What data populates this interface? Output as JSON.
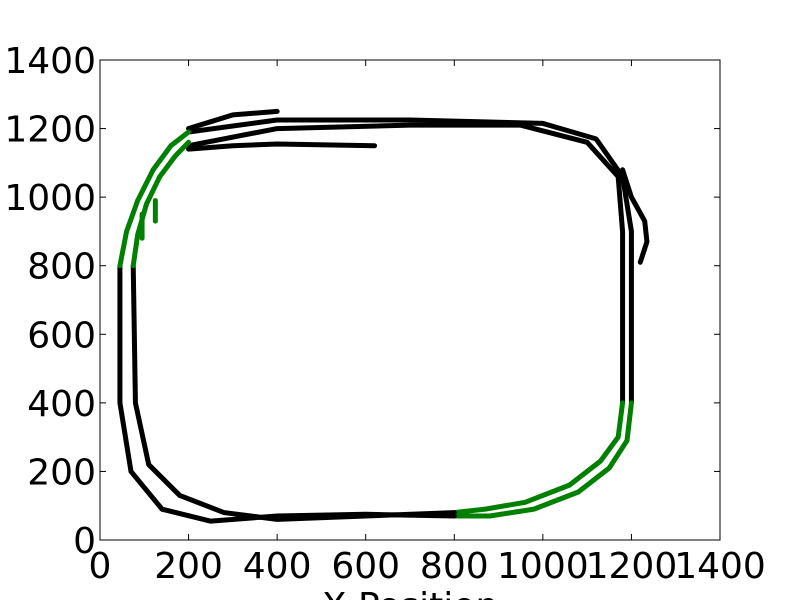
{
  "chart_data": {
    "type": "line",
    "xlabel": "X Position",
    "xlim": [
      0,
      1400
    ],
    "ylim": [
      0,
      1400
    ],
    "xticks": [
      0,
      200,
      400,
      600,
      800,
      1000,
      1200,
      1400
    ],
    "yticks": [
      0,
      200,
      400,
      600,
      800,
      1000,
      1200,
      1400
    ],
    "series": [
      {
        "color": "#000000",
        "x": [
          200,
          300,
          400
        ],
        "values": [
          1200,
          1240,
          1250
        ]
      },
      {
        "color": "#000000",
        "x": [
          200,
          400,
          700,
          1000,
          1120,
          1180,
          1200,
          1200
        ],
        "values": [
          1190,
          1225,
          1225,
          1215,
          1170,
          1060,
          900,
          400
        ]
      },
      {
        "color": "#008000",
        "x": [
          1200,
          1190,
          1150,
          1080,
          980,
          880,
          800
        ],
        "values": [
          400,
          290,
          210,
          140,
          90,
          70,
          70
        ]
      },
      {
        "color": "#000000",
        "x": [
          800,
          600,
          400,
          250,
          140,
          70,
          45,
          45
        ],
        "values": [
          70,
          75,
          70,
          55,
          90,
          200,
          400,
          800
        ]
      },
      {
        "color": "#008000",
        "x": [
          45,
          60,
          85,
          120,
          160,
          200
        ],
        "values": [
          800,
          900,
          990,
          1080,
          1150,
          1190
        ]
      },
      {
        "color": "#000000",
        "x": [
          200,
          400,
          700,
          950,
          1100,
          1170,
          1180,
          1180
        ],
        "values": [
          1150,
          1200,
          1210,
          1210,
          1160,
          1060,
          900,
          400
        ]
      },
      {
        "color": "#008000",
        "x": [
          1180,
          1170,
          1130,
          1060,
          960,
          870,
          800
        ],
        "values": [
          400,
          300,
          230,
          160,
          110,
          90,
          80
        ]
      },
      {
        "color": "#000000",
        "x": [
          800,
          600,
          400,
          280,
          180,
          110,
          80,
          75
        ],
        "values": [
          80,
          70,
          60,
          80,
          130,
          220,
          400,
          800
        ]
      },
      {
        "color": "#008000",
        "x": [
          75,
          85,
          105,
          135,
          170,
          200
        ],
        "values": [
          800,
          890,
          980,
          1060,
          1120,
          1160
        ]
      },
      {
        "color": "#000000",
        "x": [
          200,
          300,
          400,
          620
        ],
        "values": [
          1140,
          1150,
          1155,
          1150
        ]
      },
      {
        "color": "#000000",
        "x": [
          1180,
          1200,
          1230,
          1235,
          1220
        ],
        "values": [
          1080,
          1000,
          930,
          870,
          810
        ]
      },
      {
        "color": "#008000",
        "x": [
          125,
          125
        ],
        "values": [
          930,
          990
        ]
      },
      {
        "color": "#008000",
        "x": [
          95,
          95
        ],
        "values": [
          880,
          950
        ]
      }
    ]
  }
}
